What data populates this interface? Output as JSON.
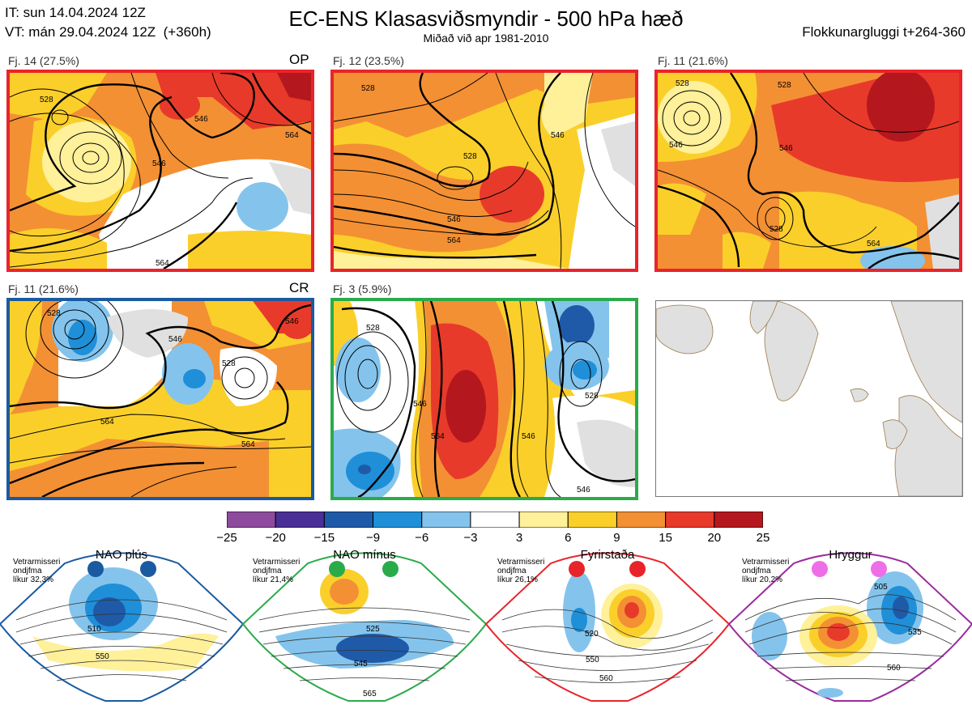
{
  "header": {
    "it_line": "IT: sun 14.04.2024 12Z",
    "vt_line": "VT: mán 29.04.2024 12Z  (+360h)",
    "title": "EC-ENS Klasasviðsmyndir - 500 hPa hæð",
    "subtitle": "Miðað við apr 1981-2010",
    "window": "Flokkunargluggi t+264-360"
  },
  "panels": [
    {
      "label": "Fj. 14 (27.5%)",
      "tag": "OP",
      "border": "#e8242a",
      "contours": [
        "528",
        "546",
        "546",
        "564",
        "564"
      ]
    },
    {
      "label": "Fj. 12 (23.5%)",
      "tag": "",
      "border": "#e8242a",
      "contours": [
        "528",
        "528",
        "546",
        "564",
        "546"
      ]
    },
    {
      "label": "Fj. 11 (21.6%)",
      "tag": "",
      "border": "#e8242a",
      "contours": [
        "528",
        "528",
        "546",
        "528",
        "546",
        "564"
      ]
    },
    {
      "label": "Fj. 11 (21.6%)",
      "tag": "CR",
      "border": "#1a5aa0",
      "contours": [
        "528",
        "546",
        "528",
        "564",
        "564",
        "546"
      ]
    },
    {
      "label": "Fj. 3 (5.9%)",
      "tag": "",
      "border": "#2aab4a",
      "contours": [
        "528",
        "546",
        "564",
        "546",
        "528",
        "546"
      ]
    }
  ],
  "colorbar": {
    "ticks": [
      "−25",
      "−20",
      "−15",
      "−9",
      "−6",
      "−3",
      "3",
      "6",
      "9",
      "15",
      "20",
      "25"
    ],
    "colors": [
      "#8e4b9e",
      "#4a2f96",
      "#1f5aa8",
      "#1f8fd8",
      "#84c4ec",
      "#ffffff",
      "#fff09a",
      "#fbcf2a",
      "#f39034",
      "#e83a2a",
      "#b5171e"
    ]
  },
  "regimes": [
    {
      "name": "NAO plús",
      "info": [
        "Vetrarmisseri",
        "ondjfma",
        "líkur 32,3%"
      ],
      "color": "#1a5aa0",
      "contours": [
        "510",
        "550"
      ]
    },
    {
      "name": "NAO mínus",
      "info": [
        "Vetrarmisseri",
        "ondjfma",
        "líkur 21,4%"
      ],
      "color": "#2aab4a",
      "contours": [
        "525",
        "545",
        "565"
      ]
    },
    {
      "name": "Fyrirstaða",
      "info": [
        "Vetrarmisseri",
        "ondjfma",
        "líkur 26,1%"
      ],
      "color": "#e8242a",
      "contours": [
        "520",
        "550",
        "560"
      ]
    },
    {
      "name": "Hryggur",
      "info": [
        "Vetrarmisseri",
        "ondjfma",
        "líkur 20,2%"
      ],
      "color": "#9a2a9e",
      "contours": [
        "505",
        "535",
        "560"
      ]
    }
  ]
}
